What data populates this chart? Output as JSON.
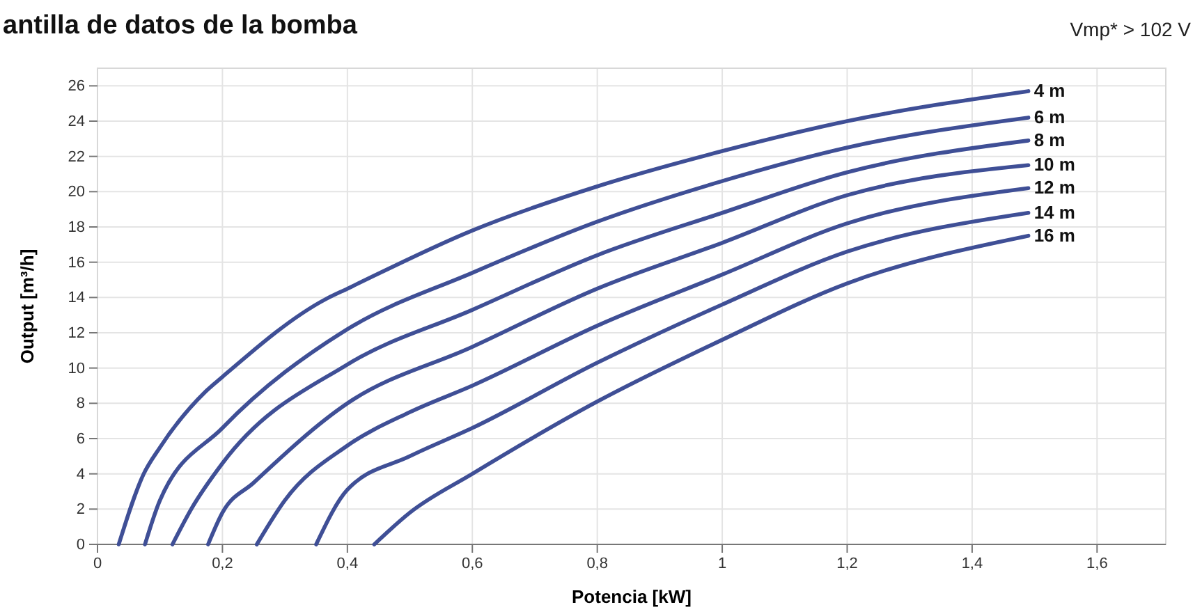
{
  "chart_data": {
    "type": "line",
    "title": "antilla de datos de la bomba",
    "annotations": [
      "Vmp* > 102 V"
    ],
    "xlabel": "Potencia  [kW]",
    "ylabel": "Output [m³/h]",
    "xlim": [
      0,
      1.71
    ],
    "ylim": [
      0,
      27
    ],
    "xticks": [
      {
        "value": 0,
        "label": "0"
      },
      {
        "value": 0.2,
        "label": "0,2"
      },
      {
        "value": 0.4,
        "label": "0,4"
      },
      {
        "value": 0.6,
        "label": "0,6"
      },
      {
        "value": 0.8,
        "label": "0,8"
      },
      {
        "value": 1,
        "label": "1"
      },
      {
        "value": 1.2,
        "label": "1,2"
      },
      {
        "value": 1.4,
        "label": "1,4"
      },
      {
        "value": 1.6,
        "label": "1,6"
      }
    ],
    "yticks": [
      0,
      2,
      4,
      6,
      8,
      10,
      12,
      14,
      16,
      18,
      20,
      22,
      24,
      26
    ],
    "grid": true,
    "marker": "none",
    "line_style": "solid",
    "series": [
      {
        "name": "4 m",
        "color": "#3f4f96",
        "x": [
          0.034,
          0.074,
          0.1,
          0.171,
          0.2,
          0.365,
          0.4,
          0.6,
          0.8,
          1.0,
          1.2,
          1.49
        ],
        "values": [
          0,
          4,
          5.5,
          8.6,
          9.5,
          13.9,
          14.5,
          17.8,
          20.3,
          22.3,
          24.0,
          25.7
        ]
      },
      {
        "name": "6 m",
        "color": "#3f4f96",
        "x": [
          0.076,
          0.1,
          0.2,
          0.4,
          0.6,
          0.8,
          1.0,
          1.2,
          1.49
        ],
        "values": [
          0,
          2.5,
          6.6,
          12.2,
          15.4,
          18.3,
          20.6,
          22.5,
          24.2
        ]
      },
      {
        "name": "8 m",
        "color": "#3f4f96",
        "x": [
          0.12,
          0.15,
          0.2,
          0.4,
          0.6,
          0.8,
          1.0,
          1.2,
          1.49
        ],
        "values": [
          0,
          2,
          4.6,
          10.2,
          13.3,
          16.4,
          18.8,
          21.1,
          22.9
        ]
      },
      {
        "name": "10 m",
        "color": "#3f4f96",
        "x": [
          0.177,
          0.2,
          0.25,
          0.4,
          0.6,
          0.8,
          1.0,
          1.2,
          1.49
        ],
        "values": [
          0,
          1.8,
          3.5,
          8.0,
          11.2,
          14.5,
          17.1,
          19.8,
          21.5
        ]
      },
      {
        "name": "12 m",
        "color": "#3f4f96",
        "x": [
          0.255,
          0.3,
          0.4,
          0.5,
          0.6,
          0.8,
          1.0,
          1.2,
          1.49
        ],
        "values": [
          0,
          2.5,
          5.6,
          7.5,
          9.0,
          12.4,
          15.3,
          18.2,
          20.2
        ]
      },
      {
        "name": "14 m",
        "color": "#3f4f96",
        "x": [
          0.35,
          0.4,
          0.5,
          0.6,
          0.8,
          1.0,
          1.2,
          1.49
        ],
        "values": [
          0,
          3.1,
          5.0,
          6.6,
          10.3,
          13.6,
          16.6,
          18.8
        ]
      },
      {
        "name": "16 m",
        "color": "#3f4f96",
        "x": [
          0.443,
          0.5,
          0.6,
          0.8,
          1.0,
          1.2,
          1.49
        ],
        "values": [
          0,
          1.8,
          4.0,
          8.1,
          11.6,
          14.8,
          17.5
        ]
      }
    ]
  }
}
